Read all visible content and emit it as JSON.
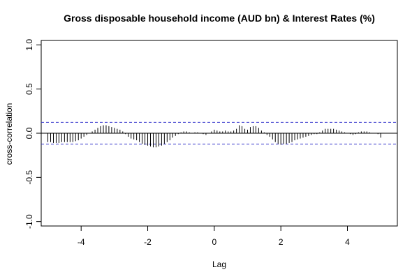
{
  "chart_data": {
    "type": "bar",
    "title": "Gross disposable household income (AUD bn) & Interest Rates (%)",
    "xlabel": "Lag",
    "ylabel": "cross-correlation",
    "xlim": [
      -5.2,
      5.5
    ],
    "ylim": [
      -1.05,
      1.05
    ],
    "x_ticks": [
      -4,
      -2,
      0,
      2,
      4
    ],
    "y_ticks": [
      -1.0,
      -0.5,
      0.0,
      0.5,
      1.0
    ],
    "x_tick_labels": [
      "-4",
      "-2",
      "0",
      "2",
      "4"
    ],
    "y_tick_labels": [
      "-1.0",
      "-0.5",
      "0.0",
      "0.5",
      "1.0"
    ],
    "confidence_bound": 0.123,
    "lag_step": 0.0833,
    "lags": [
      -5.0,
      -4.917,
      -4.833,
      -4.75,
      -4.667,
      -4.583,
      -4.5,
      -4.417,
      -4.333,
      -4.25,
      -4.167,
      -4.083,
      -4.0,
      -3.917,
      -3.833,
      -3.75,
      -3.667,
      -3.583,
      -3.5,
      -3.417,
      -3.333,
      -3.25,
      -3.167,
      -3.083,
      -3.0,
      -2.917,
      -2.833,
      -2.75,
      -2.667,
      -2.583,
      -2.5,
      -2.417,
      -2.333,
      -2.25,
      -2.167,
      -2.083,
      -2.0,
      -1.917,
      -1.833,
      -1.75,
      -1.667,
      -1.583,
      -1.5,
      -1.417,
      -1.333,
      -1.25,
      -1.167,
      -1.083,
      -1.0,
      -0.917,
      -0.833,
      -0.75,
      -0.667,
      -0.583,
      -0.5,
      -0.417,
      -0.333,
      -0.25,
      -0.167,
      -0.083,
      0.0,
      0.083,
      0.167,
      0.25,
      0.333,
      0.417,
      0.5,
      0.583,
      0.667,
      0.75,
      0.833,
      0.917,
      1.0,
      1.083,
      1.167,
      1.25,
      1.333,
      1.417,
      1.5,
      1.583,
      1.667,
      1.75,
      1.833,
      1.917,
      2.0,
      2.083,
      2.167,
      2.25,
      2.333,
      2.417,
      2.5,
      2.583,
      2.667,
      2.75,
      2.833,
      2.917,
      3.0,
      3.083,
      3.167,
      3.25,
      3.333,
      3.417,
      3.5,
      3.583,
      3.667,
      3.75,
      3.833,
      3.917,
      4.0,
      4.083,
      4.167,
      4.25,
      4.333,
      4.417,
      4.5,
      4.583,
      4.667,
      4.75,
      4.833,
      4.917,
      5.0
    ],
    "values": [
      -0.1,
      -0.1,
      -0.11,
      -0.11,
      -0.11,
      -0.1,
      -0.1,
      -0.1,
      -0.1,
      -0.1,
      -0.09,
      -0.08,
      -0.06,
      -0.04,
      -0.02,
      0.0,
      0.02,
      0.04,
      0.06,
      0.08,
      0.09,
      0.09,
      0.08,
      0.07,
      0.06,
      0.05,
      0.04,
      0.02,
      -0.01,
      -0.04,
      -0.06,
      -0.07,
      -0.08,
      -0.1,
      -0.12,
      -0.13,
      -0.14,
      -0.15,
      -0.16,
      -0.16,
      -0.15,
      -0.14,
      -0.12,
      -0.1,
      -0.08,
      -0.05,
      -0.03,
      -0.01,
      0.01,
      0.02,
      0.02,
      0.01,
      0.0,
      0.01,
      0.01,
      0.0,
      -0.01,
      -0.02,
      0.0,
      0.02,
      0.04,
      0.03,
      0.02,
      0.02,
      0.03,
      0.02,
      0.02,
      0.03,
      0.05,
      0.09,
      0.08,
      0.05,
      0.04,
      0.07,
      0.08,
      0.08,
      0.06,
      0.03,
      0.01,
      -0.02,
      -0.04,
      -0.07,
      -0.1,
      -0.12,
      -0.13,
      -0.12,
      -0.12,
      -0.11,
      -0.1,
      -0.08,
      -0.07,
      -0.06,
      -0.05,
      -0.04,
      -0.03,
      -0.02,
      -0.01,
      -0.01,
      0.01,
      0.03,
      0.05,
      0.05,
      0.05,
      0.05,
      0.04,
      0.03,
      0.02,
      0.01,
      0.0,
      -0.01,
      -0.02,
      -0.01,
      0.01,
      0.02,
      0.02,
      0.02,
      0.01,
      0.0,
      0.0,
      -0.01,
      -0.05
    ],
    "colors": {
      "bars": "#000000",
      "zero_line": "#000000",
      "confidence": "#3333cc",
      "frame": "#000000",
      "text": "#000000"
    },
    "grid": false
  }
}
